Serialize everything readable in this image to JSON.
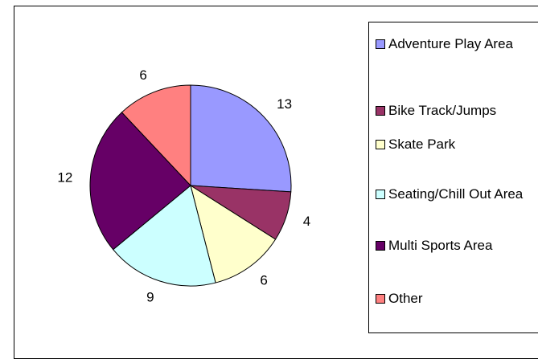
{
  "chart_data": {
    "type": "pie",
    "categories": [
      "Adventure Play Area",
      "Bike Track/Jumps",
      "Skate Park",
      "Seating/Chill Out Area",
      "Multi Sports Area",
      "Other"
    ],
    "values": [
      13,
      4,
      6,
      9,
      12,
      6
    ],
    "colors": [
      "#9999ff",
      "#993366",
      "#ffffcc",
      "#ccffff",
      "#660066",
      "#ff8080"
    ],
    "legend": "right"
  }
}
